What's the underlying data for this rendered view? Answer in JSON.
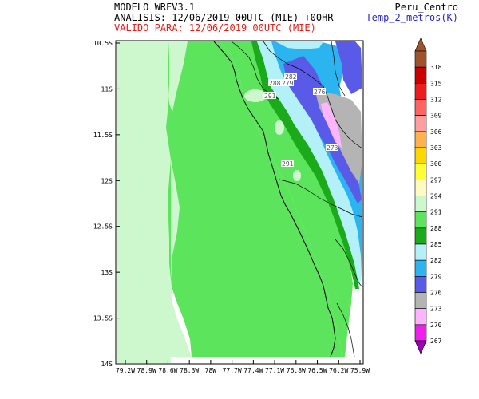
{
  "header": {
    "model": "MODELO WRFV3.1",
    "analysis": "ANALISIS: 12/06/2019 00UTC (MIE) +00HR",
    "valid": "VALIDO PARA: 12/06/2019 00UTC (MIE)",
    "domain": "Peru_Centro",
    "variable": "Temp_2_metros(K)"
  },
  "map": {
    "lat_ticks": [
      "10.5S",
      "11S",
      "11.5S",
      "12S",
      "12.5S",
      "13S",
      "13.5S",
      "14S"
    ],
    "lon_ticks": [
      "79.2W",
      "78.9W",
      "78.6W",
      "78.3W",
      "78W",
      "77.7W",
      "77.4W",
      "77.1W",
      "76.8W",
      "76.5W",
      "76.2W",
      "75.9W"
    ],
    "contour_labels": [
      "291",
      "288",
      "279",
      "282",
      "276",
      "273",
      "291"
    ]
  },
  "legend": {
    "levels": [
      {
        "label": "318",
        "color": "#a0522d"
      },
      {
        "label": "315",
        "color": "#cc0000"
      },
      {
        "label": "312",
        "color": "#ee1c1c"
      },
      {
        "label": "309",
        "color": "#ff6464"
      },
      {
        "label": "306",
        "color": "#ff9e9e"
      },
      {
        "label": "303",
        "color": "#ffb24c"
      },
      {
        "label": "300",
        "color": "#ffd700"
      },
      {
        "label": "297",
        "color": "#ffff33"
      },
      {
        "label": "294",
        "color": "#fffac0"
      },
      {
        "label": "291",
        "color": "#cdf7cd"
      },
      {
        "label": "288",
        "color": "#5ce45c"
      },
      {
        "label": "285",
        "color": "#1aaa1a"
      },
      {
        "label": "282",
        "color": "#b4f0f8"
      },
      {
        "label": "279",
        "color": "#2cb4f0"
      },
      {
        "label": "276",
        "color": "#5a5ae8"
      },
      {
        "label": "273",
        "color": "#b4b4b4"
      },
      {
        "label": "270",
        "color": "#ffb4ff"
      },
      {
        "label": "267",
        "color": "#ee20ee"
      }
    ],
    "bottom_color": "#9c00b4"
  }
}
